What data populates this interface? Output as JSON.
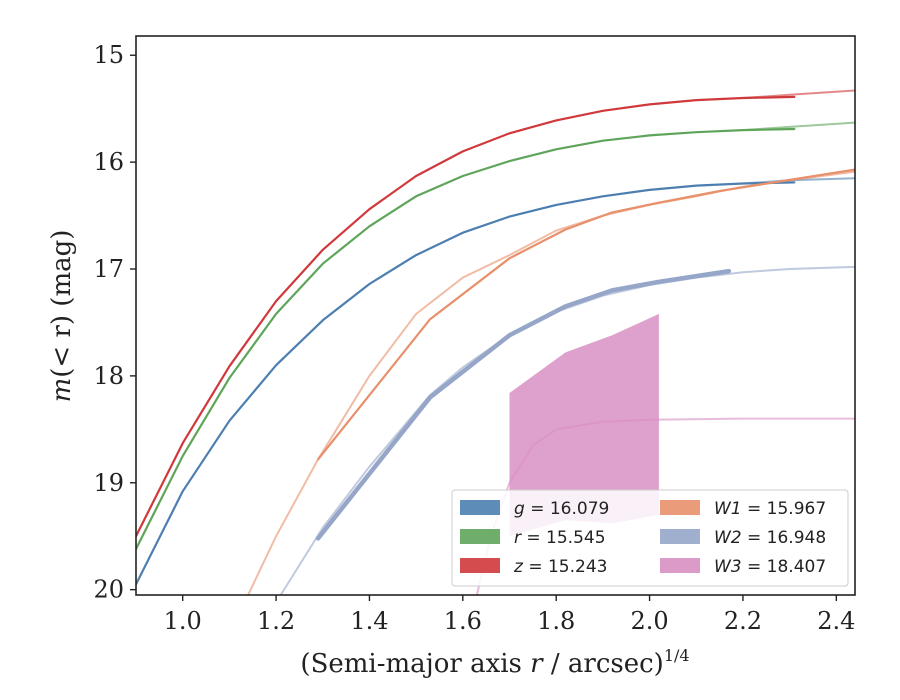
{
  "chart_data": {
    "type": "line",
    "title": "",
    "xlabel_main": "(Semi-major axis ",
    "xlabel_var": "r",
    "xlabel_unit": " / arcsec)",
    "xlabel_exp": "1/4",
    "ylabel_main": "m",
    "ylabel_rest": "(< r) (mag)",
    "xlim": [
      0.9,
      2.44
    ],
    "ylim": [
      20.05,
      14.82
    ],
    "y_inverted": true,
    "xticks": [
      1.0,
      1.2,
      1.4,
      1.6,
      1.8,
      2.0,
      2.2,
      2.4
    ],
    "xtick_labels": [
      "1.0",
      "1.2",
      "1.4",
      "1.6",
      "1.8",
      "2.0",
      "2.2",
      "2.4"
    ],
    "yticks": [
      15,
      16,
      17,
      18,
      19,
      20
    ],
    "ytick_labels": [
      "15",
      "16",
      "17",
      "18",
      "19",
      "20"
    ],
    "legend_placement": "lower-right",
    "series": [
      {
        "name": "g",
        "label_var": "g",
        "label_val": " = 16.079",
        "color": "#4c7fb0",
        "x": [
          0.9,
          1.0,
          1.1,
          1.2,
          1.3,
          1.4,
          1.5,
          1.6,
          1.7,
          1.8,
          1.9,
          2.0,
          2.1,
          2.2,
          2.31
        ],
        "y": [
          19.95,
          19.08,
          18.42,
          17.9,
          17.48,
          17.14,
          16.87,
          16.66,
          16.51,
          16.4,
          16.32,
          16.26,
          16.22,
          16.2,
          16.19
        ],
        "model_x": [
          2.2,
          2.3,
          2.44
        ],
        "model_y": [
          16.2,
          16.17,
          16.15
        ]
      },
      {
        "name": "r",
        "label_var": "r",
        "label_val": " = 15.545",
        "color": "#5ea55a",
        "x": [
          0.9,
          1.0,
          1.1,
          1.2,
          1.3,
          1.4,
          1.5,
          1.6,
          1.7,
          1.8,
          1.9,
          2.0,
          2.1,
          2.2,
          2.31
        ],
        "y": [
          19.62,
          18.75,
          18.02,
          17.42,
          16.95,
          16.6,
          16.32,
          16.13,
          15.99,
          15.88,
          15.8,
          15.75,
          15.72,
          15.7,
          15.69
        ],
        "model_x": [
          2.2,
          2.3,
          2.44
        ],
        "model_y": [
          15.7,
          15.67,
          15.63
        ]
      },
      {
        "name": "z",
        "label_var": "z",
        "label_val": " = 15.243",
        "color": "#d0393b",
        "x": [
          0.9,
          1.0,
          1.1,
          1.2,
          1.3,
          1.4,
          1.5,
          1.6,
          1.7,
          1.8,
          1.9,
          2.0,
          2.1,
          2.2,
          2.31
        ],
        "y": [
          19.5,
          18.63,
          17.91,
          17.3,
          16.82,
          16.44,
          16.13,
          15.9,
          15.73,
          15.61,
          15.52,
          15.46,
          15.42,
          15.4,
          15.39
        ],
        "model_x": [
          2.2,
          2.3,
          2.44
        ],
        "model_y": [
          15.4,
          15.37,
          15.33
        ]
      },
      {
        "name": "W1",
        "label_var": "W1",
        "label_val": " = 15.967",
        "color": "#e8906b",
        "x": [
          1.29,
          1.53,
          1.7,
          1.82,
          1.92,
          2.02,
          2.15,
          2.44
        ],
        "y": [
          18.78,
          17.47,
          16.9,
          16.63,
          16.47,
          16.38,
          16.27,
          16.07
        ],
        "model_x": [
          1.14,
          1.2,
          1.29,
          1.4,
          1.5,
          1.6,
          1.7,
          1.8,
          1.9,
          2.0,
          2.1,
          2.2,
          2.3,
          2.44
        ],
        "model_y": [
          20.05,
          19.5,
          18.78,
          18.0,
          17.42,
          17.08,
          16.87,
          16.64,
          16.5,
          16.4,
          16.32,
          16.23,
          16.17,
          16.09
        ]
      },
      {
        "name": "W2",
        "label_var": "W2",
        "label_val": " = 16.948",
        "color": "#95a6c8",
        "x": [
          1.29,
          1.53,
          1.7,
          1.82,
          1.92,
          2.02,
          2.17
        ],
        "y": [
          19.52,
          18.2,
          17.62,
          17.35,
          17.2,
          17.12,
          17.02
        ],
        "model_x": [
          1.21,
          1.3,
          1.4,
          1.53,
          1.6,
          1.7,
          1.8,
          1.9,
          2.0,
          2.1,
          2.2,
          2.3,
          2.44
        ],
        "model_y": [
          20.05,
          19.42,
          18.85,
          18.18,
          17.92,
          17.62,
          17.4,
          17.25,
          17.15,
          17.08,
          17.03,
          17.0,
          16.98
        ]
      },
      {
        "name": "W3",
        "label_var": "W3",
        "label_val": " = 18.407",
        "color": "#d88fc3",
        "band_x": [
          1.7,
          1.82,
          1.92,
          2.02
        ],
        "band_upper": [
          18.16,
          17.78,
          17.62,
          17.42
        ],
        "band_lower": [
          19.5,
          19.35,
          19.38,
          19.3
        ],
        "model_x": [
          1.63,
          1.66,
          1.7,
          1.75,
          1.8,
          1.9,
          2.0,
          2.2,
          2.44
        ],
        "model_y": [
          20.05,
          19.5,
          19.0,
          18.65,
          18.5,
          18.43,
          18.41,
          18.4,
          18.4
        ]
      }
    ]
  }
}
